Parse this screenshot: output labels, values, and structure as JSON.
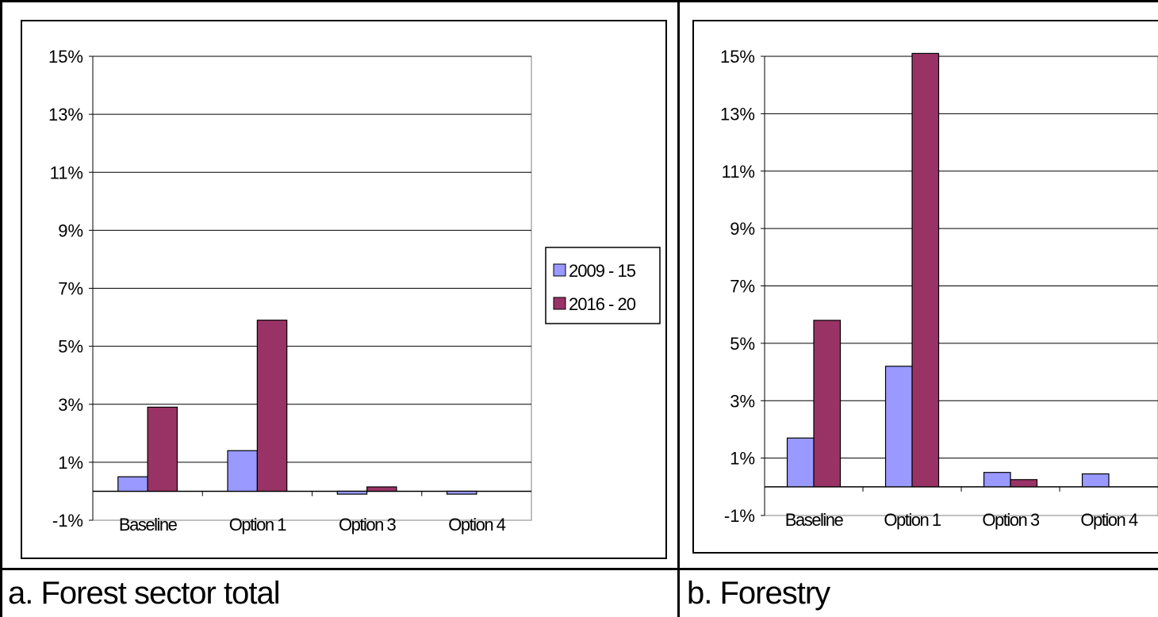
{
  "captions": {
    "left": "a. Forest sector total",
    "right": "b. Forestry"
  },
  "colors": {
    "series1": "#9999ff",
    "series2": "#993366",
    "grid": "#000000"
  },
  "chart_data": [
    {
      "type": "bar",
      "categories": [
        "Baseline",
        "Option 1",
        "Option 3",
        "Option 4"
      ],
      "ylim": [
        -1,
        15
      ],
      "yticks": [
        "15%",
        "13%",
        "11%",
        "9%",
        "7%",
        "5%",
        "3%",
        "1%",
        "-1%"
      ],
      "ytick_values": [
        15,
        13,
        11,
        9,
        7,
        5,
        3,
        1,
        -1
      ],
      "gridlines": [
        15,
        13,
        11,
        9,
        7,
        5,
        3,
        1
      ],
      "legend": "right",
      "series": [
        {
          "name": "2009 - 15",
          "values": [
            0.5,
            1.4,
            -0.1,
            -0.1
          ]
        },
        {
          "name": "2016 - 20",
          "values": [
            2.9,
            5.9,
            0.15,
            0
          ]
        }
      ]
    },
    {
      "type": "bar",
      "categories": [
        "Baseline",
        "Option 1",
        "Option 3",
        "Option 4"
      ],
      "ylim": [
        -1,
        15
      ],
      "yticks": [
        "15%",
        "13%",
        "11%",
        "9%",
        "7%",
        "5%",
        "3%",
        "1%",
        "-1%"
      ],
      "ytick_values": [
        15,
        13,
        11,
        9,
        7,
        5,
        3,
        1,
        -1
      ],
      "gridlines": [
        15,
        13,
        11,
        9,
        7,
        5,
        3,
        1
      ],
      "series": [
        {
          "name": "2009 - 15",
          "values": [
            1.7,
            4.2,
            0.5,
            0.45
          ]
        },
        {
          "name": "2016 - 20",
          "values": [
            5.8,
            15.1,
            0.25,
            0
          ]
        }
      ]
    }
  ]
}
